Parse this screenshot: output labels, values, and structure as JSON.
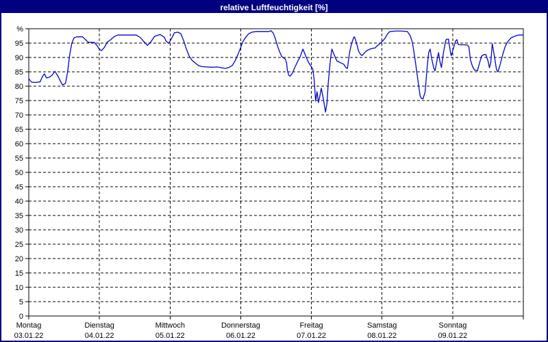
{
  "window": {
    "title": "relative Luftfeuchtigkeit [%]",
    "title_bg": "#000080",
    "border_color": "#000080"
  },
  "chart_data": {
    "type": "line",
    "title": "relative Luftfeuchtigkeit [%]",
    "ylabel": "%",
    "ylim": [
      0,
      100
    ],
    "ytick_step": 5,
    "grid": "dashed",
    "legend": "none",
    "line_color": "#0000C8",
    "yticks": [
      {
        "value": 100,
        "label": "%"
      },
      {
        "value": 95,
        "label": "95"
      },
      {
        "value": 90,
        "label": "90"
      },
      {
        "value": 85,
        "label": "85"
      },
      {
        "value": 80,
        "label": "80"
      },
      {
        "value": 75,
        "label": "75"
      },
      {
        "value": 70,
        "label": "70"
      },
      {
        "value": 65,
        "label": "65"
      },
      {
        "value": 60,
        "label": "60"
      },
      {
        "value": 55,
        "label": "55"
      },
      {
        "value": 50,
        "label": "50"
      },
      {
        "value": 45,
        "label": "45"
      },
      {
        "value": 40,
        "label": "40"
      },
      {
        "value": 35,
        "label": "35"
      },
      {
        "value": 30,
        "label": "30"
      },
      {
        "value": 25,
        "label": "25"
      },
      {
        "value": 20,
        "label": "20"
      },
      {
        "value": 15,
        "label": "15"
      },
      {
        "value": 10,
        "label": "10"
      },
      {
        "value": 5,
        "label": "5"
      },
      {
        "value": 0,
        "label": "0"
      }
    ],
    "xticks": [
      {
        "position": 0,
        "day": "Montag",
        "date": "03.01.22"
      },
      {
        "position": 1,
        "day": "Dienstag",
        "date": "04.01.22"
      },
      {
        "position": 2,
        "day": "Mittwoch",
        "date": "05.01.22"
      },
      {
        "position": 3,
        "day": "Donnerstag",
        "date": "06.01.22"
      },
      {
        "position": 4,
        "day": "Freitag",
        "date": "07.01.22"
      },
      {
        "position": 5,
        "day": "Samstag",
        "date": "08.01.22"
      },
      {
        "position": 6,
        "day": "Sonntag",
        "date": "09.01.22"
      }
    ],
    "xlim_days": [
      0,
      7
    ],
    "series": [
      {
        "name": "relative Luftfeuchtigkeit",
        "x_unit": "days_since_03.01.22",
        "points": [
          [
            0,
            82.6
          ],
          [
            0.04,
            81.4
          ],
          [
            0.1,
            81.3
          ],
          [
            0.16,
            81.5
          ],
          [
            0.19,
            83.2
          ],
          [
            0.22,
            84.3
          ],
          [
            0.25,
            82.9
          ],
          [
            0.29,
            83.1
          ],
          [
            0.33,
            83.8
          ],
          [
            0.37,
            85.2
          ],
          [
            0.41,
            83.6
          ],
          [
            0.45,
            81.7
          ],
          [
            0.48,
            80.4
          ],
          [
            0.52,
            81
          ],
          [
            0.55,
            85
          ],
          [
            0.58,
            91
          ],
          [
            0.61,
            95
          ],
          [
            0.64,
            96.8
          ],
          [
            0.68,
            97.2
          ],
          [
            0.76,
            97.2
          ],
          [
            0.8,
            96.3
          ],
          [
            0.84,
            95.3
          ],
          [
            0.93,
            95.2
          ],
          [
            0.97,
            94
          ],
          [
            1,
            92.8
          ],
          [
            1.03,
            92.4
          ],
          [
            1.07,
            93.5
          ],
          [
            1.11,
            95.3
          ],
          [
            1.16,
            96.2
          ],
          [
            1.21,
            97.3
          ],
          [
            1.26,
            97.8
          ],
          [
            1.52,
            97.8
          ],
          [
            1.58,
            96.9
          ],
          [
            1.63,
            95.5
          ],
          [
            1.68,
            94.2
          ],
          [
            1.73,
            95.5
          ],
          [
            1.78,
            97.3
          ],
          [
            1.86,
            98
          ],
          [
            1.92,
            97
          ],
          [
            1.94,
            95.8
          ],
          [
            1.98,
            94.9
          ],
          [
            2.02,
            96.5
          ],
          [
            2.06,
            98.6
          ],
          [
            2.11,
            98.8
          ],
          [
            2.15,
            98.3
          ],
          [
            2.19,
            96
          ],
          [
            2.23,
            93
          ],
          [
            2.27,
            90.5
          ],
          [
            2.31,
            89
          ],
          [
            2.36,
            88
          ],
          [
            2.4,
            87.2
          ],
          [
            2.45,
            86.8
          ],
          [
            2.52,
            86.7
          ],
          [
            2.6,
            86.6
          ],
          [
            2.67,
            86.7
          ],
          [
            2.73,
            86.4
          ],
          [
            2.78,
            86.2
          ],
          [
            2.83,
            86.5
          ],
          [
            2.88,
            87.2
          ],
          [
            2.92,
            88.8
          ],
          [
            2.96,
            91
          ],
          [
            3,
            93.5
          ],
          [
            3.03,
            95.5
          ],
          [
            3.07,
            97
          ],
          [
            3.11,
            98.2
          ],
          [
            3.16,
            98.8
          ],
          [
            3.22,
            99
          ],
          [
            3.39,
            99
          ],
          [
            3.43,
            99.3
          ],
          [
            3.46,
            98.5
          ],
          [
            3.49,
            96.5
          ],
          [
            3.52,
            94
          ],
          [
            3.55,
            92
          ],
          [
            3.58,
            90.3
          ],
          [
            3.61,
            89.8
          ],
          [
            3.63,
            89.5
          ],
          [
            3.65,
            88
          ],
          [
            3.66,
            85.5
          ],
          [
            3.68,
            83.8
          ],
          [
            3.7,
            83.5
          ],
          [
            3.73,
            84.5
          ],
          [
            3.76,
            86.2
          ],
          [
            3.8,
            88.3
          ],
          [
            3.84,
            90.2
          ],
          [
            3.88,
            92.9
          ],
          [
            3.92,
            90.5
          ],
          [
            3.96,
            88.3
          ],
          [
            4,
            86.7
          ],
          [
            4.02,
            86
          ],
          [
            4.04,
            82
          ],
          [
            4.06,
            74.8
          ],
          [
            4.08,
            78.1
          ],
          [
            4.1,
            74.3
          ],
          [
            4.12,
            76.5
          ],
          [
            4.14,
            79.3
          ],
          [
            4.17,
            75.5
          ],
          [
            4.2,
            71
          ],
          [
            4.22,
            74
          ],
          [
            4.24,
            81.4
          ],
          [
            4.27,
            89.3
          ],
          [
            4.29,
            92.9
          ],
          [
            4.33,
            90.5
          ],
          [
            4.36,
            88.8
          ],
          [
            4.41,
            88.2
          ],
          [
            4.46,
            87.6
          ],
          [
            4.49,
            86.4
          ],
          [
            4.51,
            86.2
          ],
          [
            4.54,
            91.7
          ],
          [
            4.57,
            95
          ],
          [
            4.6,
            97
          ],
          [
            4.61,
            97.2
          ],
          [
            4.63,
            95.7
          ],
          [
            4.67,
            92.1
          ],
          [
            4.7,
            90.9
          ],
          [
            4.72,
            90.7
          ],
          [
            4.77,
            92.1
          ],
          [
            4.8,
            92.6
          ],
          [
            4.85,
            93.1
          ],
          [
            4.9,
            93.3
          ],
          [
            4.93,
            94
          ],
          [
            4.97,
            94.8
          ],
          [
            5,
            95.5
          ],
          [
            5.04,
            96.6
          ],
          [
            5.08,
            98.3
          ],
          [
            5.11,
            99
          ],
          [
            5.19,
            99.2
          ],
          [
            5.28,
            99.2
          ],
          [
            5.36,
            99
          ],
          [
            5.4,
            97.5
          ],
          [
            5.43,
            95.2
          ],
          [
            5.46,
            90.5
          ],
          [
            5.49,
            85.2
          ],
          [
            5.52,
            80
          ],
          [
            5.54,
            76.5
          ],
          [
            5.56,
            75.7
          ],
          [
            5.58,
            75.6
          ],
          [
            5.61,
            78
          ],
          [
            5.64,
            86.9
          ],
          [
            5.66,
            91.7
          ],
          [
            5.68,
            92.9
          ],
          [
            5.7,
            90
          ],
          [
            5.73,
            86.5
          ],
          [
            5.75,
            85.3
          ],
          [
            5.78,
            89.3
          ],
          [
            5.8,
            91.7
          ],
          [
            5.82,
            88.5
          ],
          [
            5.84,
            86.5
          ],
          [
            5.87,
            91.7
          ],
          [
            5.9,
            95.7
          ],
          [
            5.91,
            96.3
          ],
          [
            5.94,
            96.4
          ],
          [
            5.97,
            91.5
          ],
          [
            5.98,
            90.6
          ],
          [
            6.02,
            94
          ],
          [
            6.04,
            95.7
          ],
          [
            6.06,
            96.2
          ],
          [
            6.08,
            94.5
          ],
          [
            6.11,
            94.4
          ],
          [
            6.16,
            94.4
          ],
          [
            6.21,
            94.3
          ],
          [
            6.23,
            93.6
          ],
          [
            6.25,
            89.3
          ],
          [
            6.28,
            86.9
          ],
          [
            6.31,
            85.6
          ],
          [
            6.35,
            85.4
          ],
          [
            6.38,
            88.1
          ],
          [
            6.41,
            90.5
          ],
          [
            6.44,
            91
          ],
          [
            6.47,
            91
          ],
          [
            6.5,
            88.8
          ],
          [
            6.52,
            86.4
          ],
          [
            6.54,
            88.5
          ],
          [
            6.56,
            94.8
          ],
          [
            6.59,
            90.5
          ],
          [
            6.62,
            85.8
          ],
          [
            6.64,
            85
          ],
          [
            6.67,
            87.4
          ],
          [
            6.71,
            91.2
          ],
          [
            6.74,
            93.6
          ],
          [
            6.77,
            95.2
          ],
          [
            6.81,
            96.4
          ],
          [
            6.83,
            96.9
          ],
          [
            6.88,
            97.4
          ],
          [
            6.93,
            97.8
          ],
          [
            7,
            97.8
          ]
        ]
      }
    ]
  }
}
